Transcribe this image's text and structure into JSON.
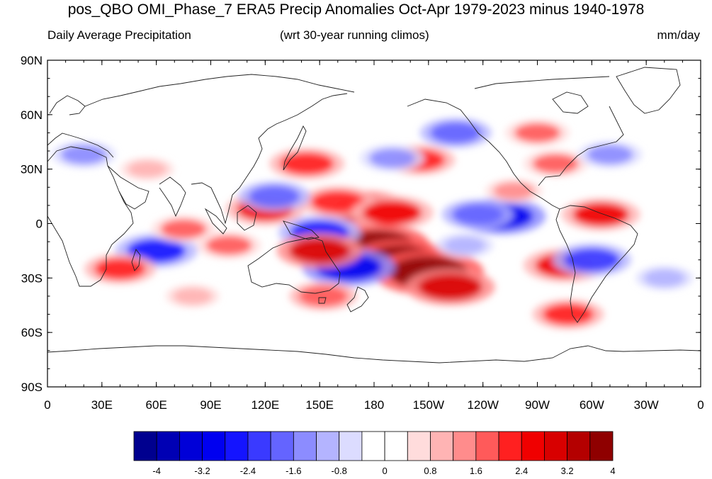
{
  "title": "pos_QBO OMI_Phase_7 ERA5 Precip Anomalies Oct-Apr 1979-2023 minus 1940-1978",
  "subtitle_left": "Daily Average Precipitation",
  "subtitle_center": "(wrt 30-year running climos)",
  "subtitle_right": "mm/day",
  "lat_ticks": [
    "90N",
    "60N",
    "30N",
    "0",
    "30S",
    "60S",
    "90S"
  ],
  "lon_ticks": [
    "0",
    "30E",
    "60E",
    "90E",
    "120E",
    "150E",
    "180",
    "150W",
    "120W",
    "90W",
    "60W",
    "30W",
    "0"
  ],
  "colorbar": {
    "colors": [
      "#00008f",
      "#0000b4",
      "#0000d8",
      "#0000f0",
      "#1414ff",
      "#3a3aff",
      "#6464ff",
      "#8c8cff",
      "#b4b4ff",
      "#dcdcff",
      "#ffffff",
      "#ffffff",
      "#ffdcdc",
      "#ffb4b4",
      "#ff8c8c",
      "#ff5a5a",
      "#ff2020",
      "#f00000",
      "#d80000",
      "#b40000",
      "#8f0000"
    ],
    "tick_labels": [
      "-4",
      "-3.2",
      "-2.4",
      "-1.6",
      "-0.8",
      "0",
      "0.8",
      "1.6",
      "2.4",
      "3.2",
      "4"
    ]
  },
  "anomaly_features": [
    {
      "lon": 175,
      "lat": 8,
      "value": 3.0
    },
    {
      "lon": 160,
      "lat": 12,
      "value": 2.2
    },
    {
      "lon": 190,
      "lat": 6,
      "value": 2.6
    },
    {
      "lon": 182,
      "lat": -12,
      "value": 3.8
    },
    {
      "lon": 195,
      "lat": -20,
      "value": 3.6
    },
    {
      "lon": 210,
      "lat": -27,
      "value": 4.2
    },
    {
      "lon": 222,
      "lat": -35,
      "value": 3.0
    },
    {
      "lon": 166,
      "lat": -24,
      "value": -3.2
    },
    {
      "lon": 150,
      "lat": -5,
      "value": -2.6
    },
    {
      "lon": 250,
      "lat": 4,
      "value": -3.0
    },
    {
      "lon": 237,
      "lat": 5,
      "value": -2.0
    },
    {
      "lon": 285,
      "lat": -23,
      "value": 2.6
    },
    {
      "lon": 305,
      "lat": 5,
      "value": 2.4
    },
    {
      "lon": 300,
      "lat": -20,
      "value": -2.4
    },
    {
      "lon": 60,
      "lat": -15,
      "value": -2.6
    },
    {
      "lon": 40,
      "lat": -25,
      "value": 2.0
    },
    {
      "lon": 75,
      "lat": -3,
      "value": 1.6
    },
    {
      "lon": 120,
      "lat": 8,
      "value": 2.4
    },
    {
      "lon": 125,
      "lat": 15,
      "value": -2.0
    },
    {
      "lon": 143,
      "lat": 33,
      "value": 2.2
    },
    {
      "lon": 205,
      "lat": 35,
      "value": 2.0
    },
    {
      "lon": 190,
      "lat": 36,
      "value": -1.6
    },
    {
      "lon": 225,
      "lat": 50,
      "value": -2.0
    },
    {
      "lon": 280,
      "lat": 33,
      "value": 1.6
    },
    {
      "lon": 310,
      "lat": 38,
      "value": -1.6
    },
    {
      "lon": 20,
      "lat": 38,
      "value": -1.6
    },
    {
      "lon": 152,
      "lat": -40,
      "value": 1.8
    },
    {
      "lon": 287,
      "lat": -50,
      "value": 2.0
    },
    {
      "lon": 150,
      "lat": -15,
      "value": 2.8
    },
    {
      "lon": 100,
      "lat": -12,
      "value": 1.6
    },
    {
      "lon": 257,
      "lat": 18,
      "value": 1.2
    },
    {
      "lon": 270,
      "lat": 50,
      "value": 1.6
    },
    {
      "lon": 340,
      "lat": -30,
      "value": -1.2
    },
    {
      "lon": 230,
      "lat": -12,
      "value": -1.2
    },
    {
      "lon": 80,
      "lat": -40,
      "value": 1.0
    },
    {
      "lon": 55,
      "lat": 30,
      "value": 1.0
    }
  ]
}
